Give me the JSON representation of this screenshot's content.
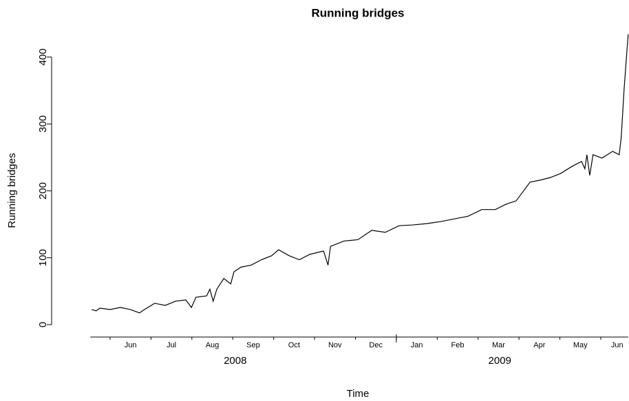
{
  "chart_data": {
    "type": "line",
    "title": "Running bridges",
    "xlabel": "Time",
    "ylabel": "Running bridges",
    "x": [
      -0.45,
      -0.34,
      -0.25,
      0,
      0.25,
      0.5,
      0.72,
      0.84,
      1.09,
      1.35,
      1.6,
      1.85,
      1.99,
      2.1,
      2.36,
      2.44,
      2.52,
      2.61,
      2.78,
      2.95,
      3.03,
      3.2,
      3.45,
      3.7,
      3.95,
      4.12,
      4.38,
      4.63,
      4.88,
      5.22,
      5.33,
      5.39,
      5.72,
      6.06,
      6.4,
      6.73,
      7.07,
      7.4,
      7.74,
      8.08,
      8.41,
      8.75,
      9.09,
      9.42,
      9.68,
      9.93,
      10.1,
      10.27,
      10.52,
      10.77,
      11.02,
      11.28,
      11.53,
      11.61,
      11.66,
      11.73,
      11.81,
      12.03,
      12.29,
      12.45,
      12.5,
      12.57,
      12.62,
      12.67
    ],
    "series": [
      {
        "name": "Running bridges",
        "color": "#000000",
        "values": [
          22.6,
          20.6,
          24.7,
          22.6,
          25.7,
          22.6,
          17.5,
          22.6,
          31.9,
          28.8,
          35,
          37,
          25.7,
          41,
          43,
          53,
          35,
          53,
          69,
          61,
          79,
          86,
          89,
          97,
          103,
          112,
          103,
          97,
          105,
          110,
          89,
          117,
          125,
          127,
          141,
          138,
          148,
          149,
          151,
          154,
          158,
          162,
          172,
          172,
          180,
          185,
          199,
          213,
          216,
          220,
          226,
          236,
          244,
          233,
          254,
          223,
          254,
          249,
          259,
          254,
          280,
          352,
          393,
          434
        ]
      }
    ],
    "xlim": [
      -1.43,
      12.69
    ],
    "ylim": [
      -18.5,
      440
    ],
    "yticks": [
      0,
      100,
      200,
      300,
      400
    ],
    "xticks": [
      0,
      1,
      2,
      3,
      4,
      5,
      6,
      7,
      8,
      9,
      10,
      11,
      12
    ],
    "xtick_labels": [
      {
        "value": 0.5,
        "label": "Jun"
      },
      {
        "value": 1.5,
        "label": "Jul"
      },
      {
        "value": 2.5,
        "label": "Aug"
      },
      {
        "value": 3.5,
        "label": "Sep"
      },
      {
        "value": 4.5,
        "label": "Oct"
      },
      {
        "value": 5.5,
        "label": "Nov"
      },
      {
        "value": 6.5,
        "label": "Dec"
      },
      {
        "value": 7.5,
        "label": "Jan"
      },
      {
        "value": 8.5,
        "label": "Feb"
      },
      {
        "value": 9.5,
        "label": "Mar"
      },
      {
        "value": 10.5,
        "label": "Apr"
      },
      {
        "value": 11.5,
        "label": "May"
      },
      {
        "value": 12.4,
        "label": "Jun"
      }
    ],
    "x_groups": [
      {
        "value": 3.06,
        "label": "2008"
      },
      {
        "value": 9.53,
        "label": "2009"
      }
    ],
    "group_break": 7
  }
}
